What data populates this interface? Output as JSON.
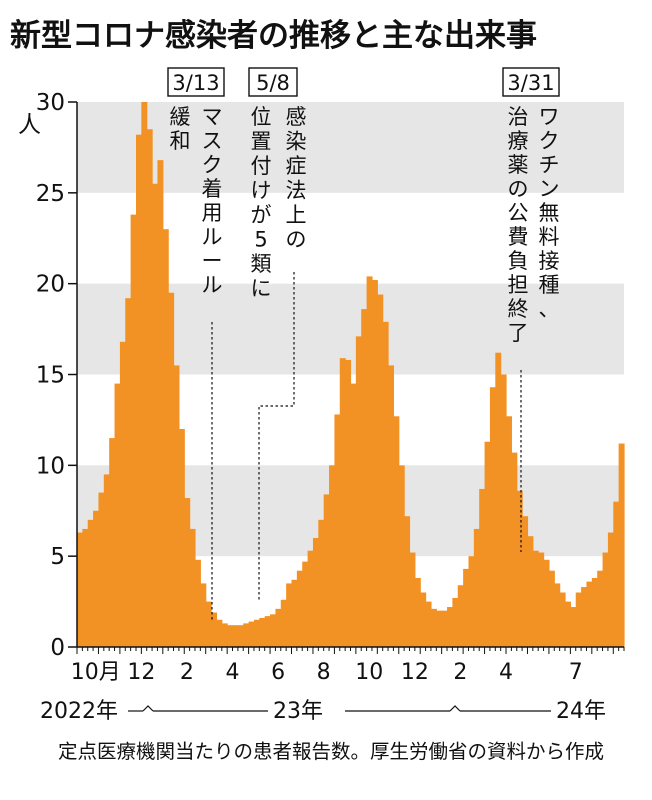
{
  "header": {
    "title": "新型コロナ感染者の推移と主な出来事"
  },
  "source": {
    "text": "定点医療機関当たりの患者報告数。厚生労働省の資料から作成"
  },
  "chart_data": {
    "type": "bar",
    "ylabel": "人",
    "ylim": [
      0,
      30
    ],
    "yticks": [
      0,
      5,
      10,
      15,
      20,
      25,
      30
    ],
    "grid_bands": [
      [
        5,
        10
      ],
      [
        15,
        20
      ],
      [
        25,
        30
      ]
    ],
    "xtick_labels": [
      "10月",
      "12",
      "2",
      "4",
      "6",
      "8",
      "10",
      "12",
      "2",
      "4",
      "7"
    ],
    "xtick_weeks": [
      3.5,
      12,
      20.5,
      29,
      37.5,
      46,
      54.5,
      63,
      71.5,
      80,
      93
    ],
    "year_labels": [
      "2022年",
      "23年",
      "24年"
    ],
    "values": [
      6.3,
      6.5,
      7.0,
      7.5,
      8.5,
      9.5,
      11.5,
      14.5,
      16.8,
      19.2,
      23.8,
      28.2,
      30.0,
      28.5,
      25.5,
      26.8,
      23.0,
      19.5,
      15.5,
      12.0,
      8.2,
      6.5,
      4.8,
      3.5,
      2.5,
      1.9,
      1.5,
      1.3,
      1.2,
      1.2,
      1.2,
      1.3,
      1.4,
      1.5,
      1.6,
      1.7,
      1.8,
      2.1,
      2.6,
      3.5,
      3.7,
      4.2,
      4.7,
      5.3,
      6.0,
      7.0,
      8.4,
      10.0,
      12.8,
      15.9,
      15.8,
      14.5,
      17.1,
      18.6,
      20.4,
      20.2,
      19.4,
      17.9,
      15.5,
      12.7,
      10.0,
      7.2,
      5.2,
      3.8,
      3.0,
      2.5,
      2.1,
      2.0,
      2.0,
      2.2,
      2.7,
      3.4,
      4.3,
      5.0,
      6.5,
      8.7,
      11.3,
      14.3,
      16.2,
      15.0,
      12.7,
      10.7,
      8.6,
      7.2,
      6.1,
      5.3,
      5.2,
      4.8,
      4.2,
      3.5,
      3.0,
      2.5,
      2.2,
      3.0,
      3.3,
      3.6,
      3.8,
      4.2,
      5.2,
      6.3,
      8.0,
      11.2
    ],
    "events": [
      {
        "date": "3/13",
        "label_lines": [
          "緩",
          "和"
        ],
        "label_lines2": [
          "マ",
          "ス",
          "ク",
          "着",
          "用",
          "ル",
          "ー",
          "ル"
        ],
        "week": 25
      },
      {
        "date": "5/8",
        "label_lines": [
          "感",
          "染",
          "症",
          "法",
          "上",
          "の"
        ],
        "label_lines2": [
          "位",
          "置",
          "付",
          "け",
          "が",
          "5",
          "類",
          "に"
        ],
        "week": 33
      },
      {
        "date": "3/31",
        "label_lines": [
          "ワ",
          "ク",
          "チ",
          "ン",
          "無",
          "料",
          "接",
          "種",
          "、"
        ],
        "label_lines2": [
          "治",
          "療",
          "薬",
          "の",
          "公",
          "費",
          "負",
          "担",
          "終",
          "了"
        ],
        "week": 80
      }
    ]
  }
}
